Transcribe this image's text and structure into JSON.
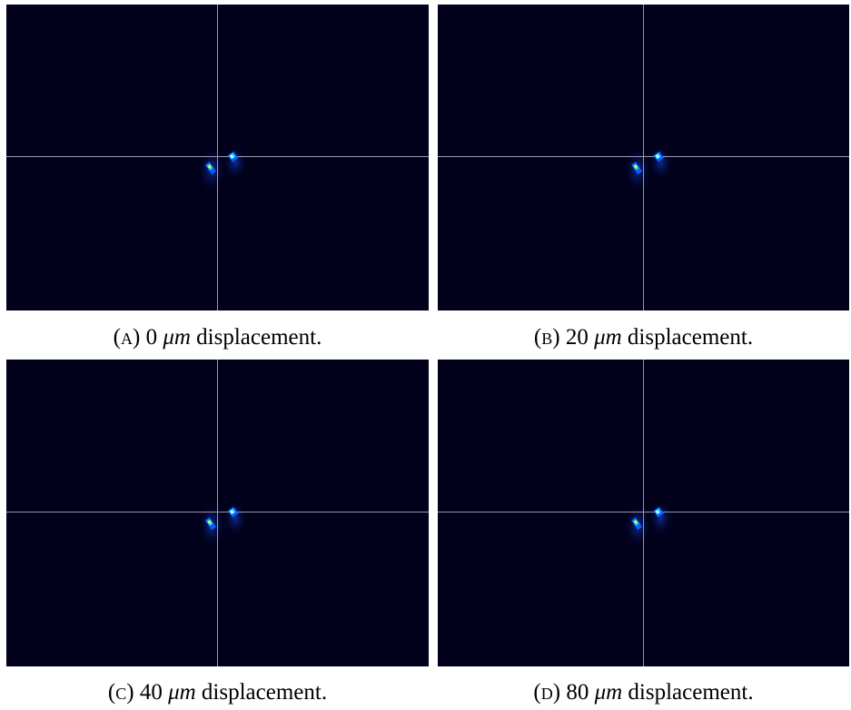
{
  "subfigures": [
    {
      "label": "(a)",
      "value": "0",
      "unit": "μm",
      "text": "displacement."
    },
    {
      "label": "(b)",
      "value": "20",
      "unit": "μm",
      "text": "displacement."
    },
    {
      "label": "(c)",
      "value": "40",
      "unit": "μm",
      "text": "displacement."
    },
    {
      "label": "(d)",
      "value": "80",
      "unit": "μm",
      "text": "displacement."
    }
  ]
}
